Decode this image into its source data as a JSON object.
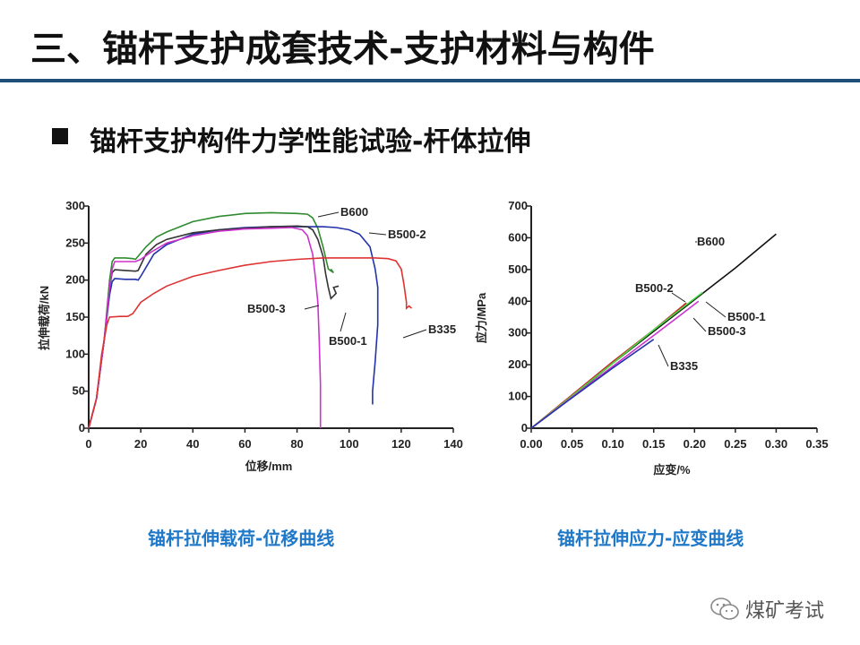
{
  "slide": {
    "title": "三、锚杆支护成套技术-支护材料与构件",
    "subtitle": "锚杆支护构件力学性能试验-杆体拉伸",
    "caption_left": "锚杆拉伸载荷-位移曲线",
    "caption_right": "锚杆拉伸应力-应变曲线",
    "watermark": "煤矿考试",
    "watermark_icon": "wechat-icon",
    "accent_color": "#1f4e79",
    "caption_color": "#1f78c8"
  },
  "chart_data": [
    {
      "type": "line",
      "xlabel": "位移/mm",
      "ylabel": "拉伸载荷/kN",
      "xlim": [
        0,
        140
      ],
      "ylim": [
        0,
        300
      ],
      "xticks": [
        0,
        20,
        40,
        60,
        80,
        100,
        120,
        140
      ],
      "yticks": [
        0,
        50,
        100,
        150,
        200,
        250,
        300
      ],
      "grid": false,
      "series": [
        {
          "name": "B600",
          "color": "#2e8b2e",
          "points": [
            [
              0,
              0
            ],
            [
              3,
              40
            ],
            [
              6,
              120
            ],
            [
              8,
              200
            ],
            [
              9,
              225
            ],
            [
              10,
              230
            ],
            [
              14,
              230
            ],
            [
              17,
              229
            ],
            [
              18,
              228
            ],
            [
              22,
              245
            ],
            [
              26,
              258
            ],
            [
              30,
              265
            ],
            [
              40,
              279
            ],
            [
              50,
              286
            ],
            [
              60,
              290
            ],
            [
              70,
              291
            ],
            [
              80,
              290
            ],
            [
              84,
              289
            ],
            [
              86,
              284
            ],
            [
              88,
              270
            ],
            [
              90,
              245
            ],
            [
              92,
              215
            ],
            [
              94,
              210
            ],
            [
              93,
              215
            ]
          ]
        },
        {
          "name": "B500-2",
          "color": "#2233aa",
          "points": [
            [
              0,
              0
            ],
            [
              3,
              40
            ],
            [
              6,
              120
            ],
            [
              8,
              180
            ],
            [
              9,
              198
            ],
            [
              10,
              202
            ],
            [
              14,
              201
            ],
            [
              16,
              201
            ],
            [
              18,
              201
            ],
            [
              19,
              200
            ],
            [
              20,
              205
            ],
            [
              25,
              235
            ],
            [
              30,
              248
            ],
            [
              40,
              262
            ],
            [
              50,
              268
            ],
            [
              60,
              271
            ],
            [
              70,
              272
            ],
            [
              80,
              272
            ],
            [
              90,
              272
            ],
            [
              95,
              271
            ],
            [
              100,
              268
            ],
            [
              104,
              262
            ],
            [
              108,
              245
            ],
            [
              110,
              215
            ],
            [
              111,
              190
            ],
            [
              111,
              140
            ],
            [
              110,
              90
            ],
            [
              109,
              50
            ],
            [
              109,
              32
            ]
          ]
        },
        {
          "name": "B500-1",
          "color": "#333333",
          "points": [
            [
              0,
              0
            ],
            [
              3,
              40
            ],
            [
              6,
              120
            ],
            [
              8,
              190
            ],
            [
              9,
              210
            ],
            [
              10,
              214
            ],
            [
              14,
              213
            ],
            [
              18,
              212
            ],
            [
              19,
              213
            ],
            [
              22,
              235
            ],
            [
              26,
              248
            ],
            [
              30,
              255
            ],
            [
              40,
              264
            ],
            [
              50,
              268
            ],
            [
              60,
              270
            ],
            [
              70,
              272
            ],
            [
              80,
              273
            ],
            [
              84,
              272
            ],
            [
              86,
              268
            ],
            [
              88,
              255
            ],
            [
              90,
              232
            ],
            [
              91,
              208
            ],
            [
              92,
              190
            ],
            [
              93,
              175
            ],
            [
              95,
              182
            ],
            [
              94,
              190
            ],
            [
              96,
              192
            ]
          ]
        },
        {
          "name": "B500-3",
          "color": "#cc33cc",
          "points": [
            [
              0,
              0
            ],
            [
              3,
              40
            ],
            [
              6,
              120
            ],
            [
              8,
              190
            ],
            [
              9,
              215
            ],
            [
              10,
              225
            ],
            [
              14,
              225
            ],
            [
              18,
              225
            ],
            [
              20,
              228
            ],
            [
              24,
              238
            ],
            [
              30,
              250
            ],
            [
              40,
              260
            ],
            [
              50,
              266
            ],
            [
              60,
              269
            ],
            [
              70,
              270
            ],
            [
              78,
              271
            ],
            [
              82,
              268
            ],
            [
              84,
              260
            ],
            [
              86,
              235
            ],
            [
              87,
              205
            ],
            [
              88,
              170
            ],
            [
              88.5,
              120
            ],
            [
              89,
              60
            ],
            [
              89,
              0
            ]
          ]
        },
        {
          "name": "B335",
          "color": "#dd3333",
          "points": [
            [
              0,
              0
            ],
            [
              3,
              40
            ],
            [
              5,
              100
            ],
            [
              7,
              140
            ],
            [
              8,
              150
            ],
            [
              12,
              151
            ],
            [
              15,
              151
            ],
            [
              17,
              155
            ],
            [
              20,
              170
            ],
            [
              25,
              182
            ],
            [
              30,
              192
            ],
            [
              40,
              205
            ],
            [
              50,
              213
            ],
            [
              60,
              220
            ],
            [
              70,
              225
            ],
            [
              80,
              228
            ],
            [
              90,
              230
            ],
            [
              100,
              230
            ],
            [
              110,
              230
            ],
            [
              115,
              229
            ],
            [
              118,
              226
            ],
            [
              120,
              215
            ],
            [
              121,
              195
            ],
            [
              122,
              170
            ],
            [
              122,
              162
            ],
            [
              123,
              165
            ],
            [
              124,
              162
            ]
          ]
        }
      ],
      "labels": [
        "B600",
        "B500-2",
        "B500-3",
        "B500-1",
        "B335"
      ]
    },
    {
      "type": "line",
      "xlabel": "应变/%",
      "ylabel": "应力/MPa",
      "xlim": [
        0,
        0.35
      ],
      "ylim": [
        0,
        700
      ],
      "xticks": [
        "0.00",
        "0.05",
        "0.10",
        "0.15",
        "0.20",
        "0.25",
        "0.30",
        "0.35"
      ],
      "yticks": [
        0,
        100,
        200,
        300,
        400,
        500,
        600,
        700
      ],
      "grid": false,
      "series": [
        {
          "name": "B600",
          "color": "#111111",
          "points": [
            [
              0,
              0
            ],
            [
              0.05,
              100
            ],
            [
              0.1,
              205
            ],
            [
              0.15,
              305
            ],
            [
              0.2,
              405
            ],
            [
              0.25,
              505
            ],
            [
              0.3,
              612
            ]
          ]
        },
        {
          "name": "B500-2",
          "color": "#cc2222",
          "points": [
            [
              0,
              0
            ],
            [
              0.05,
              105
            ],
            [
              0.1,
              210
            ],
            [
              0.15,
              310
            ],
            [
              0.19,
              395
            ]
          ]
        },
        {
          "name": "B500-1",
          "color": "#44dd44",
          "points": [
            [
              0,
              0
            ],
            [
              0.05,
              102
            ],
            [
              0.1,
              205
            ],
            [
              0.15,
              310
            ],
            [
              0.21,
              428
            ]
          ]
        },
        {
          "name": "B500-3",
          "color": "#cc33cc",
          "points": [
            [
              0,
              0
            ],
            [
              0.05,
              98
            ],
            [
              0.1,
              195
            ],
            [
              0.15,
              292
            ],
            [
              0.205,
              400
            ]
          ]
        },
        {
          "name": "B335",
          "color": "#2233aa",
          "points": [
            [
              0,
              0
            ],
            [
              0.05,
              96
            ],
            [
              0.1,
              190
            ],
            [
              0.15,
              280
            ]
          ]
        }
      ],
      "labels": [
        "B600",
        "B500-2",
        "B500-1",
        "B500-3",
        "B335"
      ]
    }
  ]
}
